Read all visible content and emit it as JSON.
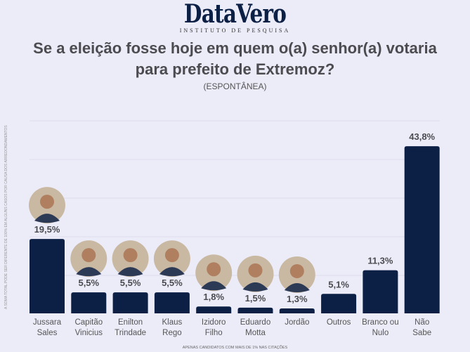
{
  "logo": {
    "name": "DataVero",
    "tagline": "INSTITUTO DE PESQUISA"
  },
  "side_note": "A SOMA TOTAL PODE SER DIFERENTE DE 100% EM ALGUNS CASOS POR CAUSA DOS ARREDONDAMENTOS",
  "footer": "APENAS CANDIDATOS COM MAIS DE 1% NAS CITAÇÕES",
  "colors": {
    "bar": "#0c1f45",
    "background": "#ECECF9"
  },
  "chart_data": {
    "type": "bar",
    "title": "Se a eleição fosse hoje em quem o(a) senhor(a) votaria para prefeito de Extremoz?",
    "subtitle": "(ESPONTÂNEA)",
    "categories": [
      [
        "Jussara",
        "Sales"
      ],
      [
        "Capitão",
        "Vinicius"
      ],
      [
        "Enilton",
        "Trindade"
      ],
      [
        "Klaus",
        "Rego"
      ],
      [
        "Izidoro",
        "Filho"
      ],
      [
        "Eduardo",
        "Motta"
      ],
      [
        "Jordão"
      ],
      [
        "Outros"
      ],
      [
        "Branco ou",
        "Nulo"
      ],
      [
        "Não",
        "Sabe"
      ]
    ],
    "values": [
      19.5,
      5.5,
      5.5,
      5.5,
      1.8,
      1.5,
      1.3,
      5.1,
      11.3,
      43.8
    ],
    "labels": [
      "19,5%",
      "5,5%",
      "5,5%",
      "5,5%",
      "1,8%",
      "1,5%",
      "1,3%",
      "5,1%",
      "11,3%",
      "43,8%"
    ],
    "has_photo": [
      true,
      true,
      true,
      true,
      true,
      true,
      true,
      false,
      false,
      false
    ],
    "ylim": [
      0,
      50
    ],
    "grid": true
  }
}
